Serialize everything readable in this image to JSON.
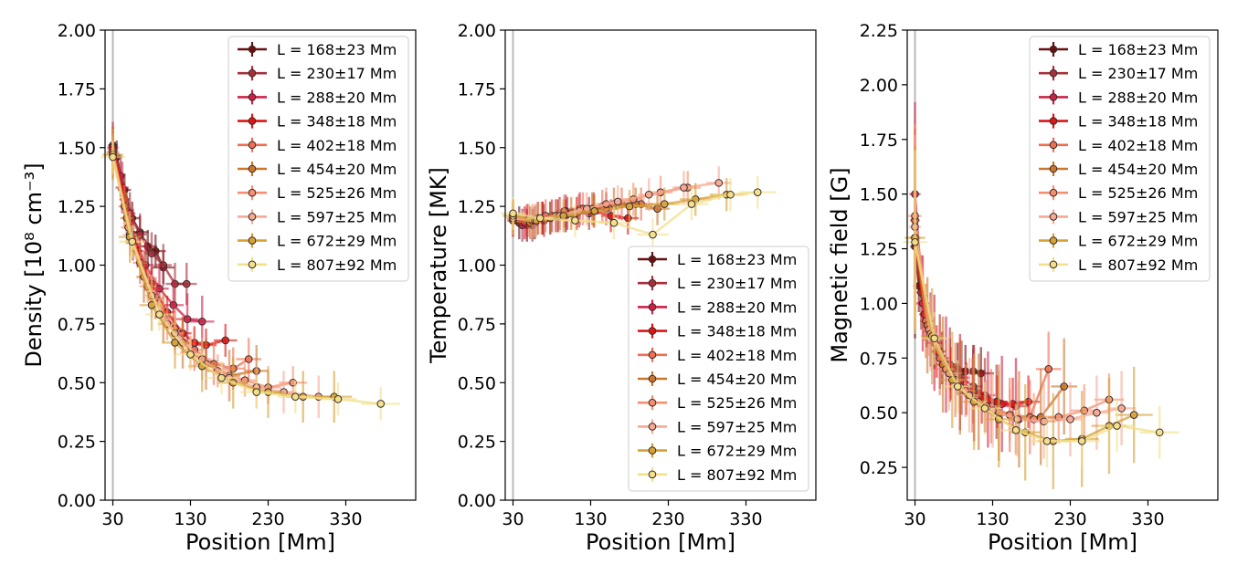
{
  "figure": {
    "legend_entries": [
      {
        "label": "L = 168±23 Mm",
        "color": "#6b0f0f"
      },
      {
        "label": "L = 230±17 Mm",
        "color": "#a5303a"
      },
      {
        "label": "L = 288±20 Mm",
        "color": "#cc2248"
      },
      {
        "label": "L = 348±18 Mm",
        "color": "#dd1515"
      },
      {
        "label": "L = 402±18 Mm",
        "color": "#ee6f52"
      },
      {
        "label": "L = 454±20 Mm",
        "color": "#c8782e"
      },
      {
        "label": "L = 525±26 Mm",
        "color": "#f49070"
      },
      {
        "label": "L = 597±25 Mm",
        "color": "#f6a993"
      },
      {
        "label": "L = 672±29 Mm",
        "color": "#d6a238"
      },
      {
        "label": "L = 807±92 Mm",
        "color": "#f2e08a"
      }
    ]
  },
  "chart_data": [
    {
      "type": "line",
      "title": "",
      "xlabel": "Position [Mm]",
      "ylabel": "Density [10⁸ cm⁻³]",
      "xlim": [
        20,
        420
      ],
      "ylim": [
        0,
        2.0
      ],
      "xticks": [
        "30",
        "130",
        "230",
        "330"
      ],
      "yticks": [
        "0.00",
        "0.25",
        "0.50",
        "0.75",
        "1.00",
        "1.25",
        "1.50",
        "1.75",
        "2.00"
      ],
      "vline_x": 30,
      "legend_position": "upper-right",
      "series": [
        {
          "name": "L = 168±23 Mm",
          "x": [
            30,
            35,
            45,
            55,
            65,
            75,
            85,
            95
          ],
          "y": [
            1.51,
            1.46,
            1.32,
            1.2,
            1.14,
            1.08,
            1.06,
            0.99
          ]
        },
        {
          "name": "L = 230±17 Mm",
          "x": [
            30,
            40,
            52,
            65,
            80,
            95,
            110,
            125
          ],
          "y": [
            1.5,
            1.38,
            1.22,
            1.13,
            1.05,
            1.0,
            0.92,
            0.92
          ]
        },
        {
          "name": "L = 288±20 Mm",
          "x": [
            30,
            42,
            56,
            72,
            90,
            108,
            126,
            145
          ],
          "y": [
            1.5,
            1.33,
            1.13,
            1.0,
            0.9,
            0.83,
            0.77,
            0.76
          ]
        },
        {
          "name": "L = 348±18 Mm",
          "x": [
            30,
            45,
            62,
            80,
            100,
            120,
            135,
            150,
            175
          ],
          "y": [
            1.5,
            1.28,
            1.06,
            0.92,
            0.8,
            0.71,
            0.67,
            0.66,
            0.68
          ]
        },
        {
          "name": "L = 402±18 Mm",
          "x": [
            30,
            45,
            65,
            85,
            110,
            135,
            160,
            185,
            205
          ],
          "y": [
            1.49,
            1.25,
            1.01,
            0.86,
            0.73,
            0.64,
            0.58,
            0.56,
            0.6
          ]
        },
        {
          "name": "L = 454±20 Mm",
          "x": [
            30,
            48,
            70,
            95,
            120,
            150,
            180,
            215
          ],
          "y": [
            1.48,
            1.2,
            0.95,
            0.78,
            0.67,
            0.58,
            0.53,
            0.55
          ]
        },
        {
          "name": "L = 525±26 Mm",
          "x": [
            30,
            50,
            75,
            100,
            130,
            165,
            200,
            230,
            262
          ],
          "y": [
            1.48,
            1.16,
            0.91,
            0.75,
            0.63,
            0.55,
            0.51,
            0.48,
            0.5
          ]
        },
        {
          "name": "L = 597±25 Mm",
          "x": [
            30,
            52,
            80,
            110,
            145,
            180,
            215,
            250,
            295
          ],
          "y": [
            1.47,
            1.13,
            0.87,
            0.71,
            0.6,
            0.52,
            0.48,
            0.46,
            0.44
          ]
        },
        {
          "name": "L = 672±29 Mm",
          "x": [
            30,
            52,
            80,
            110,
            145,
            185,
            230,
            275,
            315
          ],
          "y": [
            1.47,
            1.12,
            0.83,
            0.67,
            0.57,
            0.5,
            0.46,
            0.44,
            0.44
          ]
        },
        {
          "name": "L = 807±92 Mm",
          "x": [
            30,
            55,
            90,
            130,
            170,
            215,
            265,
            320,
            375
          ],
          "y": [
            1.46,
            1.1,
            0.79,
            0.62,
            0.52,
            0.46,
            0.44,
            0.43,
            0.41
          ]
        }
      ]
    },
    {
      "type": "line",
      "title": "",
      "xlabel": "Position [Mm]",
      "ylabel": "Temperature [MK]",
      "xlim": [
        20,
        420
      ],
      "ylim": [
        0,
        2.0
      ],
      "xticks": [
        "30",
        "130",
        "230",
        "330"
      ],
      "yticks": [
        "0.00",
        "0.25",
        "0.50",
        "0.75",
        "1.00",
        "1.25",
        "1.50",
        "1.75",
        "2.00"
      ],
      "vline_x": 30,
      "legend_position": "lower-right",
      "series": [
        {
          "name": "L = 168±23 Mm",
          "x": [
            30,
            38,
            48,
            58,
            68,
            78,
            88,
            98
          ],
          "y": [
            1.2,
            1.18,
            1.17,
            1.18,
            1.2,
            1.2,
            1.21,
            1.21
          ]
        },
        {
          "name": "L = 230±17 Mm",
          "x": [
            30,
            42,
            55,
            70,
            85,
            100,
            115,
            128
          ],
          "y": [
            1.2,
            1.17,
            1.17,
            1.19,
            1.21,
            1.22,
            1.23,
            1.22
          ]
        },
        {
          "name": "L = 288±20 Mm",
          "x": [
            30,
            45,
            62,
            80,
            98,
            116,
            134,
            150
          ],
          "y": [
            1.19,
            1.18,
            1.2,
            1.21,
            1.23,
            1.24,
            1.24,
            1.24
          ]
        },
        {
          "name": "L = 348±18 Mm",
          "x": [
            30,
            48,
            68,
            90,
            112,
            134,
            156,
            178
          ],
          "y": [
            1.21,
            1.19,
            1.2,
            1.22,
            1.22,
            1.23,
            1.21,
            1.2
          ]
        },
        {
          "name": "L = 402±18 Mm",
          "x": [
            30,
            50,
            72,
            96,
            120,
            145,
            170,
            195
          ],
          "y": [
            1.2,
            1.19,
            1.21,
            1.23,
            1.24,
            1.25,
            1.26,
            1.26
          ]
        },
        {
          "name": "L = 454±20 Mm",
          "x": [
            30,
            52,
            78,
            105,
            132,
            160,
            188,
            216
          ],
          "y": [
            1.19,
            1.18,
            1.2,
            1.22,
            1.24,
            1.26,
            1.26,
            1.24
          ]
        },
        {
          "name": "L = 525±26 Mm",
          "x": [
            30,
            55,
            85,
            115,
            150,
            185,
            220,
            255
          ],
          "y": [
            1.2,
            1.19,
            1.21,
            1.23,
            1.26,
            1.28,
            1.31,
            1.33
          ]
        },
        {
          "name": "L = 597±25 Mm",
          "x": [
            30,
            58,
            90,
            125,
            165,
            205,
            250,
            295
          ],
          "y": [
            1.2,
            1.19,
            1.21,
            1.24,
            1.27,
            1.3,
            1.33,
            1.35
          ]
        },
        {
          "name": "L = 672±29 Mm",
          "x": [
            30,
            60,
            95,
            135,
            180,
            225,
            265,
            305
          ],
          "y": [
            1.21,
            1.19,
            1.21,
            1.23,
            1.25,
            1.26,
            1.28,
            1.3
          ]
        },
        {
          "name": "L = 807±92 Mm",
          "x": [
            30,
            65,
            110,
            160,
            210,
            260,
            310,
            345
          ],
          "y": [
            1.22,
            1.2,
            1.19,
            1.18,
            1.13,
            1.26,
            1.3,
            1.31
          ]
        }
      ]
    },
    {
      "type": "line",
      "title": "",
      "xlabel": "Position [Mm]",
      "ylabel": "Magnetic field [G]",
      "xlim": [
        20,
        420
      ],
      "ylim": [
        0.1,
        2.25
      ],
      "xticks": [
        "30",
        "130",
        "230",
        "330"
      ],
      "yticks": [
        "0.25",
        "0.50",
        "0.75",
        "1.00",
        "1.25",
        "1.50",
        "1.75",
        "2.00",
        "2.25"
      ],
      "vline_x": 30,
      "legend_position": "upper-right",
      "series": [
        {
          "name": "L = 168±23 Mm",
          "x": [
            30,
            35,
            45,
            55,
            65,
            75,
            85,
            95,
            105,
            115
          ],
          "y": [
            1.26,
            1.08,
            0.92,
            0.82,
            0.75,
            0.72,
            0.7,
            0.69,
            0.69,
            0.68
          ]
        },
        {
          "name": "L = 230±17 Mm",
          "x": [
            30,
            38,
            50,
            62,
            75,
            90,
            105,
            120,
            135
          ],
          "y": [
            1.38,
            1.05,
            0.88,
            0.78,
            0.72,
            0.66,
            0.62,
            0.58,
            0.55
          ]
        },
        {
          "name": "L = 288±20 Mm",
          "x": [
            30,
            40,
            55,
            70,
            88,
            106,
            124,
            142,
            160
          ],
          "y": [
            1.5,
            1.0,
            0.82,
            0.72,
            0.64,
            0.59,
            0.56,
            0.54,
            0.53
          ]
        },
        {
          "name": "L = 348±18 Mm",
          "x": [
            30,
            42,
            58,
            76,
            96,
            116,
            136,
            156,
            176
          ],
          "y": [
            1.3,
            0.95,
            0.78,
            0.68,
            0.61,
            0.57,
            0.55,
            0.54,
            0.55
          ]
        },
        {
          "name": "L = 402±18 Mm",
          "x": [
            30,
            44,
            62,
            82,
            104,
            128,
            152,
            178,
            202
          ],
          "y": [
            1.38,
            0.92,
            0.75,
            0.65,
            0.58,
            0.53,
            0.49,
            0.48,
            0.7
          ]
        },
        {
          "name": "L = 454±20 Mm",
          "x": [
            30,
            46,
            66,
            88,
            112,
            138,
            164,
            192,
            222
          ],
          "y": [
            1.3,
            0.9,
            0.72,
            0.62,
            0.55,
            0.5,
            0.47,
            0.48,
            0.62
          ]
        },
        {
          "name": "L = 525±26 Mm",
          "x": [
            30,
            48,
            70,
            95,
            122,
            152,
            183,
            215,
            248,
            280
          ],
          "y": [
            1.4,
            0.88,
            0.7,
            0.6,
            0.53,
            0.49,
            0.47,
            0.48,
            0.51,
            0.56
          ]
        },
        {
          "name": "L = 597±25 Mm",
          "x": [
            30,
            50,
            74,
            100,
            130,
            162,
            196,
            230,
            264,
            296
          ],
          "y": [
            1.35,
            0.86,
            0.68,
            0.58,
            0.51,
            0.47,
            0.46,
            0.47,
            0.5,
            0.52
          ]
        },
        {
          "name": "L = 672±29 Mm",
          "x": [
            30,
            52,
            78,
            106,
            138,
            172,
            208,
            245,
            280,
            312
          ],
          "y": [
            1.3,
            0.85,
            0.65,
            0.55,
            0.47,
            0.41,
            0.37,
            0.38,
            0.44,
            0.49
          ]
        },
        {
          "name": "L = 807±92 Mm",
          "x": [
            30,
            55,
            85,
            120,
            160,
            200,
            245,
            290,
            345
          ],
          "y": [
            1.28,
            0.84,
            0.62,
            0.52,
            0.42,
            0.37,
            0.37,
            0.44,
            0.41
          ]
        }
      ]
    }
  ]
}
